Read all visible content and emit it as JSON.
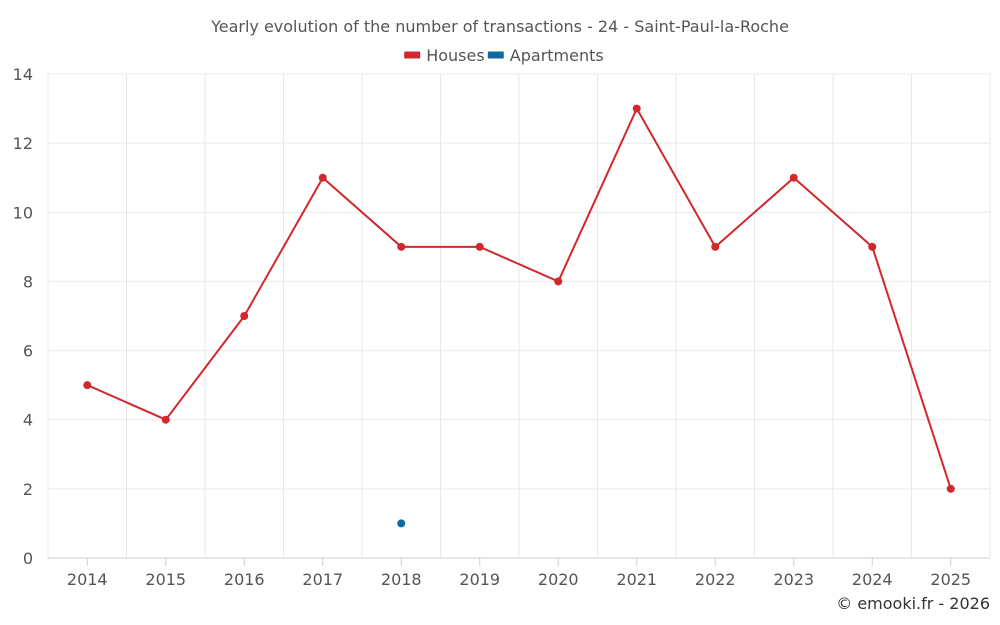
{
  "chart_data": {
    "type": "line",
    "title": "Yearly evolution of the number of transactions - 24 - Saint-Paul-la-Roche",
    "categories": [
      "2014",
      "2015",
      "2016",
      "2017",
      "2018",
      "2019",
      "2020",
      "2021",
      "2022",
      "2023",
      "2024",
      "2025"
    ],
    "series": [
      {
        "name": "Houses",
        "color": "#d1282d",
        "values": [
          5,
          4,
          7,
          11,
          9,
          9,
          8,
          13,
          9,
          11,
          9,
          2
        ]
      },
      {
        "name": "Apartments",
        "color": "#0a6aa1",
        "values": [
          null,
          null,
          null,
          null,
          1,
          null,
          null,
          null,
          null,
          null,
          null,
          null
        ]
      }
    ],
    "ylim": [
      0,
      14
    ],
    "yticks": [
      0,
      2,
      4,
      6,
      8,
      10,
      12,
      14
    ],
    "grid": true,
    "legend_position": "top-center",
    "xlabel": "",
    "ylabel": ""
  },
  "credit": "© emooki.fr - 2026"
}
